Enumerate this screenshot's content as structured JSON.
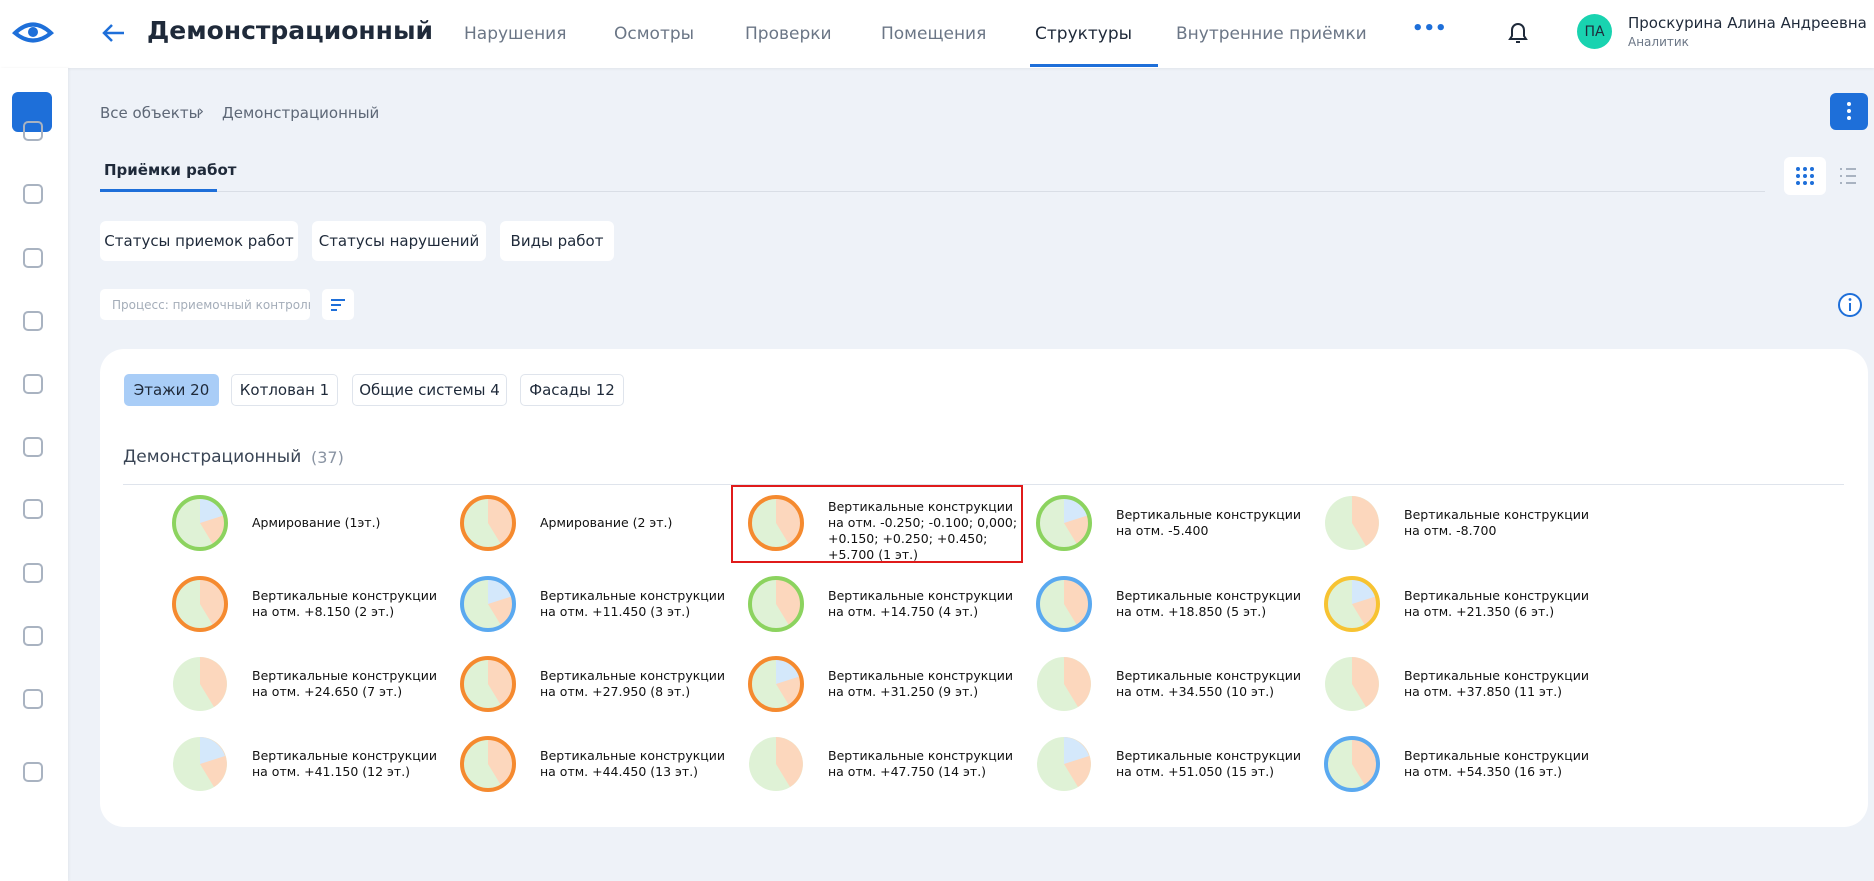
{
  "header": {
    "title": "Демонстрационный",
    "nav": [
      "Нарушения",
      "Осмотры",
      "Проверки",
      "Помещения",
      "Структуры",
      "Внутренние приёмки"
    ],
    "more": "•••",
    "user": {
      "initials": "ПА",
      "name": "Проскурина Алина Андреевна",
      "role": "Аналитик"
    }
  },
  "breadcrumbs": [
    "Все объекты",
    "Демонстрационный"
  ],
  "tab": "Приёмки работ",
  "filters": [
    "Статусы приемок работ",
    "Статусы нарушений",
    "Виды работ"
  ],
  "search_placeholder": "Процесс: приемочный контроль",
  "chips": [
    "Этажи 20",
    "Котлован 1",
    "Общие системы 4",
    "Фасады 12"
  ],
  "section": {
    "title": "Демонстрационный",
    "count": "(37)"
  },
  "items": [
    {
      "label": "Армирование (1эт.)"
    },
    {
      "label": "Армирование (2 эт.)"
    },
    {
      "label": "Вертикальные конструкции на отм. -0.250; -0.100; 0,000; +0.150; +0.250; +0.450; +5.700 (1 эт.)"
    },
    {
      "label": "Вертикальные конструкции на отм. -5.400"
    },
    {
      "label": "Вертикальные конструкции на отм. -8.700"
    },
    {
      "label": "Вертикальные конструкции на отм. +8.150 (2 эт.)"
    },
    {
      "label": "Вертикальные конструкции на отм. +11.450 (3 эт.)"
    },
    {
      "label": "Вертикальные конструкции на отм. +14.750 (4 эт.)"
    },
    {
      "label": "Вертикальные конструкции на отм. +18.850 (5 эт.)"
    },
    {
      "label": "Вертикальные конструкции на отм. +21.350 (6 эт.)"
    },
    {
      "label": "Вертикальные конструкции на отм. +24.650 (7 эт.)"
    },
    {
      "label": "Вертикальные конструкции на отм. +27.950 (8 эт.)"
    },
    {
      "label": "Вертикальные конструкции на отм. +31.250 (9 эт.)"
    },
    {
      "label": "Вертикальные конструкции на отм. +34.550 (10 эт.)"
    },
    {
      "label": "Вертикальные конструкции на отм. +37.850 (11 эт.)"
    },
    {
      "label": "Вертикальные конструкции на отм. +41.150 (12 эт.)"
    },
    {
      "label": "Вертикальные конструкции на отм. +44.450 (13 эт.)"
    },
    {
      "label": "Вертикальные конструкции на отм. +47.750 (14 эт.)"
    },
    {
      "label": "Вертикальные конструкции на отм. +51.050 (15 эт.)"
    },
    {
      "label": "Вертикальные конструкции на отм. +54.350 (16 эт.)"
    }
  ]
}
